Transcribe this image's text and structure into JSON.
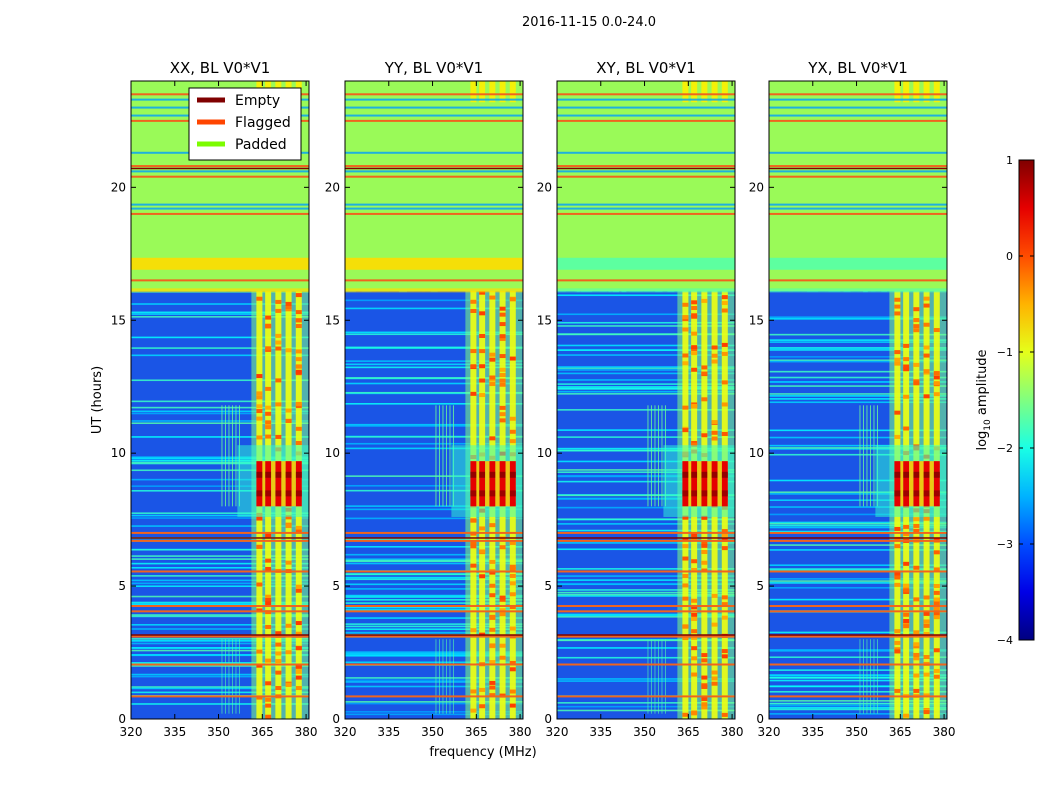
{
  "figure": {
    "suptitle": "2016-11-15 0.0-24.0",
    "xlabel": "frequency (MHz)",
    "ylabel": "UT (hours)"
  },
  "chart_data": {
    "type": "heatmap",
    "x": {
      "range_mhz": [
        320,
        381
      ],
      "ticks": [
        320,
        335,
        350,
        365,
        380
      ],
      "tick_labels": [
        "320",
        "335",
        "350",
        "365",
        "380"
      ]
    },
    "y": {
      "range_hours": [
        0,
        24
      ],
      "ticks": [
        0,
        5,
        10,
        15,
        20
      ],
      "tick_labels": [
        "0",
        "5",
        "10",
        "15",
        "20"
      ]
    },
    "panels": [
      {
        "title": "XX, BL V0*V1",
        "pol": "XX",
        "padded_tone": "yellow"
      },
      {
        "title": "YY, BL V0*V1",
        "pol": "YY",
        "padded_tone": "yellow"
      },
      {
        "title": "XY, BL V0*V1",
        "pol": "XY",
        "padded_tone": "cyan"
      },
      {
        "title": "YX, BL V0*V1",
        "pol": "YX",
        "padded_tone": "cyan"
      }
    ],
    "legend": {
      "placement": "top-right of first panel",
      "entries": [
        {
          "label": "Empty",
          "color": "#800000"
        },
        {
          "label": "Flagged",
          "color": "#ff4500"
        },
        {
          "label": "Padded",
          "color": "#7cfc00"
        }
      ]
    },
    "colorbar": {
      "label_main": "log",
      "label_sub": "10",
      "label_rest": " amplitude",
      "range": [
        -4,
        1
      ],
      "ticks": [
        -4,
        -3,
        -2,
        -1,
        0,
        1
      ],
      "tick_labels": [
        "−4",
        "−3",
        "−2",
        "−1",
        "0",
        "1"
      ],
      "colormap": "jet"
    },
    "features": {
      "padded_hours": [
        [
          16.1,
          24.0
        ]
      ],
      "rfi_bright_hours": [
        8.0,
        9.7
      ],
      "rfi_band_mhz": [
        364,
        378
      ],
      "flagged_hours": [
        0.85,
        2.05,
        3.1,
        4.05,
        4.25,
        5.55,
        6.7,
        7.0,
        16.5,
        19.0,
        20.4,
        20.8,
        22.5,
        23.5
      ]
    },
    "colors": {
      "padded": "#9afa58",
      "flagged": "#f0641e",
      "empty": "#800000",
      "noise_base": "#1a55e6"
    }
  }
}
